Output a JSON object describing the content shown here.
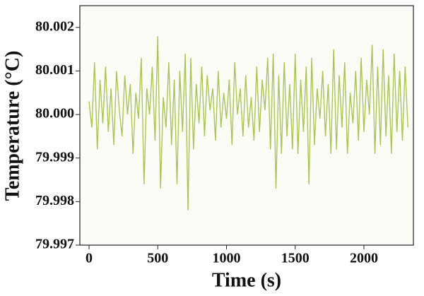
{
  "chart_data": {
    "type": "line",
    "xlabel": "Time (s)",
    "ylabel": "Temperature (°C)",
    "x": [
      0,
      20,
      40,
      60,
      80,
      100,
      120,
      140,
      160,
      180,
      200,
      220,
      240,
      260,
      280,
      300,
      320,
      340,
      360,
      380,
      400,
      420,
      440,
      460,
      480,
      500,
      520,
      540,
      560,
      580,
      600,
      620,
      640,
      660,
      680,
      700,
      720,
      740,
      760,
      780,
      800,
      820,
      840,
      860,
      880,
      900,
      920,
      940,
      960,
      980,
      1000,
      1020,
      1040,
      1060,
      1080,
      1100,
      1120,
      1140,
      1160,
      1180,
      1200,
      1220,
      1240,
      1260,
      1280,
      1300,
      1320,
      1340,
      1360,
      1380,
      1400,
      1420,
      1440,
      1460,
      1480,
      1500,
      1520,
      1540,
      1560,
      1580,
      1600,
      1620,
      1640,
      1660,
      1680,
      1700,
      1720,
      1740,
      1760,
      1780,
      1800,
      1820,
      1840,
      1860,
      1880,
      1900,
      1920,
      1940,
      1960,
      1980,
      2000,
      2020,
      2040,
      2060,
      2080,
      2100,
      2120,
      2140,
      2160,
      2180,
      2200,
      2220,
      2240,
      2260,
      2280,
      2300,
      2320
    ],
    "series": [
      {
        "color": "#a9c458",
        "values": [
          80.0003,
          79.9997,
          80.0012,
          79.9992,
          80.0008,
          79.9998,
          80.0011,
          79.9996,
          80.0006,
          79.9993,
          80.001,
          80.0001,
          79.9995,
          80.0009,
          80.0,
          80.0007,
          79.9991,
          80.0005,
          79.9999,
          80.0013,
          79.9984,
          80.0006,
          80.0,
          80.0011,
          79.9994,
          80.0018,
          79.9983,
          80.0004,
          79.9997,
          80.0012,
          79.9993,
          80.0008,
          79.9984,
          80.001,
          79.9996,
          80.0014,
          79.9978,
          80.0013,
          79.9992,
          80.0007,
          79.9998,
          80.0011,
          79.9995,
          80.0009,
          80.0001,
          80.0006,
          79.9994,
          80.001,
          79.9997,
          80.0005,
          79.9999,
          80.0008,
          79.9993,
          80.0012,
          80.0,
          80.0006,
          79.9995,
          80.0009,
          79.9997,
          80.0004,
          79.9994,
          80.0011,
          79.9996,
          80.0008,
          80.0001,
          80.0013,
          79.9992,
          80.0014,
          79.9983,
          80.0009,
          79.9991,
          80.0012,
          79.9995,
          80.0007,
          79.9992,
          80.0014,
          79.9991,
          80.0008,
          79.9996,
          80.0011,
          79.9984,
          80.0013,
          79.9993,
          80.0006,
          79.9999,
          80.001,
          79.9995,
          80.0007,
          79.9991,
          80.0015,
          79.9992,
          80.0009,
          79.9997,
          80.0012,
          79.9991,
          80.0005,
          79.9998,
          80.001,
          79.9994,
          80.0013,
          79.9996,
          80.0008,
          80.0,
          80.0016,
          79.9991,
          80.0011,
          79.9993,
          80.0015,
          79.9995,
          80.0009,
          79.9991,
          80.0014,
          79.9996,
          80.001,
          79.9994,
          80.0011,
          79.9997
        ]
      }
    ],
    "xlim": [
      -67,
      2360
    ],
    "xticks": [
      0,
      500,
      1000,
      1500,
      2000
    ],
    "ylim": [
      79.997,
      80.0025
    ],
    "yticks": [
      79.997,
      79.998,
      79.999,
      {
        "value": 80,
        "label": "80.000"
      },
      80.001,
      80.002
    ]
  }
}
